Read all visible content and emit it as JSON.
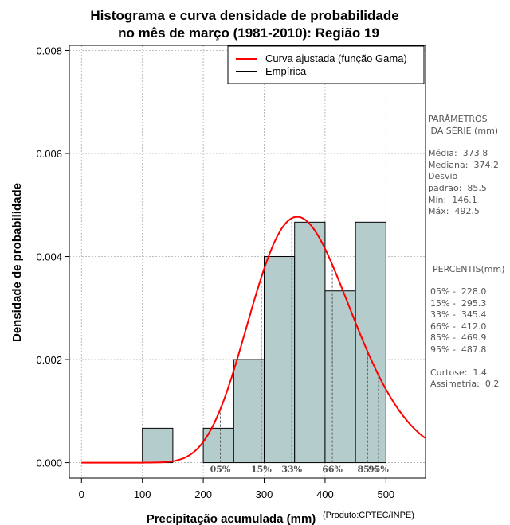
{
  "chart_data": {
    "type": "histogram",
    "title_line1": "Histograma e curva densidade de probabilidade",
    "title_line2": "no mês de março (1981-2010): Região 19",
    "xlabel": "Precipitação acumulada (mm)",
    "ylabel": "Densidade de probabilidade",
    "credit": "(Produto:CPTEC/INPE)",
    "xlim": [
      -20,
      565
    ],
    "ylim": [
      -0.0003,
      0.0081
    ],
    "x_ticks": [
      0,
      100,
      200,
      300,
      400,
      500
    ],
    "x_tick_labels": [
      "0",
      "100",
      "200",
      "300",
      "400",
      "500"
    ],
    "y_ticks": [
      0,
      0.002,
      0.004,
      0.006,
      0.008
    ],
    "y_tick_labels": [
      "0.000",
      "0.002",
      "0.004",
      "0.006",
      "0.008"
    ],
    "bins": [
      {
        "from": 100,
        "to": 150,
        "density": 0.000667
      },
      {
        "from": 150,
        "to": 200,
        "density": 0
      },
      {
        "from": 200,
        "to": 250,
        "density": 0.000667
      },
      {
        "from": 250,
        "to": 300,
        "density": 0.002
      },
      {
        "from": 300,
        "to": 350,
        "density": 0.004
      },
      {
        "from": 350,
        "to": 400,
        "density": 0.004667
      },
      {
        "from": 400,
        "to": 450,
        "density": 0.003333
      },
      {
        "from": 450,
        "to": 500,
        "density": 0.004667
      }
    ],
    "gamma_fit": {
      "mean": 373.8,
      "sd": 85.5
    },
    "percentiles": [
      {
        "label": "05%",
        "value": 228.0
      },
      {
        "label": "15%",
        "value": 295.3
      },
      {
        "label": "33%",
        "value": 345.4
      },
      {
        "label": "66%",
        "value": 412.0
      },
      {
        "label": "85%",
        "value": 469.9
      },
      {
        "label": "95%",
        "value": 487.8
      }
    ],
    "legend": [
      {
        "label": "Curva ajustada (função Gama)",
        "color": "#ff0000"
      },
      {
        "label": "Empírica",
        "color": "#000000"
      }
    ],
    "colors": {
      "bar_fill": "#b4cccc",
      "curve": "#ff0000",
      "grid": "#aaaaaa",
      "percentile_line": "#555555"
    }
  },
  "params": {
    "heading_line1": "PARÂMETROS",
    "heading_line2": " DA SÉRIE (mm)",
    "media": "Média:  373.8",
    "mediana": "Mediana:  374.2",
    "desvio_line1": "Desvio",
    "desvio_line2": "padrão:  85.5",
    "min": "Mín:  146.1",
    "max": "Máx:  492.5"
  },
  "percentis": {
    "heading": "PERCENTIS(mm)",
    "rows": [
      "05% -  228.0",
      "15% -  295.3",
      "33% -  345.4",
      "66% -  412.0",
      "85% -  469.9",
      "95% -  487.8"
    ]
  },
  "stats": {
    "curtose": "Curtose:  1.4",
    "assimetria": "Assimetria:  0.2"
  }
}
